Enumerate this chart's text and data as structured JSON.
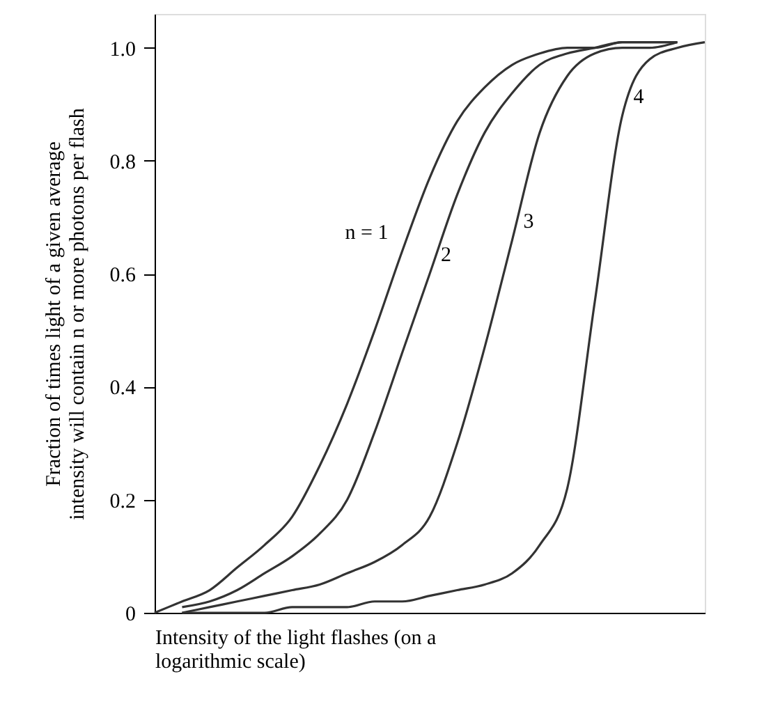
{
  "chart_data": {
    "type": "line",
    "xlabel": "Intensity of the light flashes (on a\nlogarithmic scale)",
    "ylabel": "Fraction of times light of a given average\nintensity will contain n or more photons per flash",
    "categories": [
      null,
      null,
      null,
      null,
      null,
      null,
      null,
      null,
      null,
      null,
      null,
      null,
      null,
      null,
      null,
      null,
      null,
      null,
      null,
      null,
      null
    ],
    "series": [
      {
        "name": "n = 1",
        "color": "#333333",
        "values": [
          0,
          0.02,
          0.04,
          0.08,
          0.12,
          0.17,
          0.26,
          0.37,
          0.5,
          0.64,
          0.77,
          0.87,
          0.93,
          0.97,
          0.99,
          1.0,
          1.0,
          1.01,
          1.01,
          1.01,
          null
        ]
      },
      {
        "name": "2",
        "color": "#333333",
        "values": [
          null,
          0.01,
          0.02,
          0.04,
          0.07,
          0.1,
          0.14,
          0.2,
          0.32,
          0.46,
          0.6,
          0.74,
          0.85,
          0.92,
          0.97,
          0.99,
          1.0,
          1.01,
          1.01,
          1.01,
          null
        ]
      },
      {
        "name": "3",
        "color": "#333333",
        "values": [
          null,
          0,
          0.01,
          0.02,
          0.03,
          0.04,
          0.05,
          0.07,
          0.09,
          0.12,
          0.17,
          0.3,
          0.47,
          0.66,
          0.85,
          0.95,
          0.99,
          1.0,
          1.0,
          1.01,
          null
        ]
      },
      {
        "name": "4",
        "color": "#333333",
        "values": [
          null,
          0,
          0,
          0,
          0,
          0.01,
          0.01,
          0.01,
          0.02,
          0.02,
          0.03,
          0.04,
          0.05,
          0.07,
          0.12,
          0.22,
          0.55,
          0.88,
          0.98,
          1.0,
          1.01
        ]
      }
    ],
    "ylim": [
      0,
      1.06
    ],
    "yticks": [
      0,
      0.2,
      0.4,
      0.6,
      0.8,
      {
        "value": 1.0,
        "label": "1.0"
      }
    ],
    "tick_labels": "y",
    "grid": false,
    "legend": false,
    "marker": "none",
    "line_style": "solid"
  }
}
